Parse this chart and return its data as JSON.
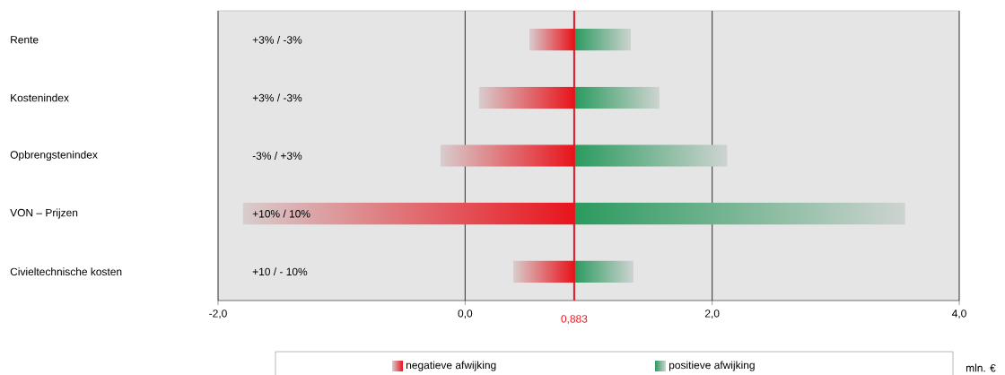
{
  "chart_data": {
    "type": "bar",
    "orientation": "horizontal",
    "categories": [
      "Rente",
      "Kostenindex",
      "Opbrengstenindex",
      "VON – Prijzen",
      "Civieltechnische kosten"
    ],
    "series": [
      {
        "name": "negatieve afwijking",
        "color": "#e8141c",
        "base": [
          0.52,
          0.11,
          -0.2,
          -1.8,
          0.39
        ],
        "values": [
          0.36,
          0.77,
          1.08,
          2.68,
          0.49
        ]
      },
      {
        "name": "positieve afwijking",
        "color": "#2a9a5e",
        "base": [
          0.883,
          0.883,
          0.883,
          0.883,
          0.883
        ],
        "values": [
          0.46,
          0.69,
          1.24,
          2.68,
          0.48
        ]
      }
    ],
    "xlim": [
      -2,
      4
    ],
    "xticks": [
      {
        "value": -2,
        "label": "-2,0"
      },
      {
        "value": 0,
        "label": "0,0"
      },
      {
        "value": 2,
        "label": "2,0"
      },
      {
        "value": 4,
        "label": "4,0"
      }
    ],
    "xlabel": "mln. €",
    "ref_lines": [
      {
        "axis": "x",
        "value": 0.883,
        "label": "0,883",
        "color": "#e8141c"
      }
    ],
    "annotations": [
      "+3%  /  -3%",
      "+3%  /   -3%",
      "-3%  /  +3%",
      "+10%  /  10%",
      "+10  /  - 10%"
    ],
    "grid": "x",
    "legend": "bottom"
  }
}
